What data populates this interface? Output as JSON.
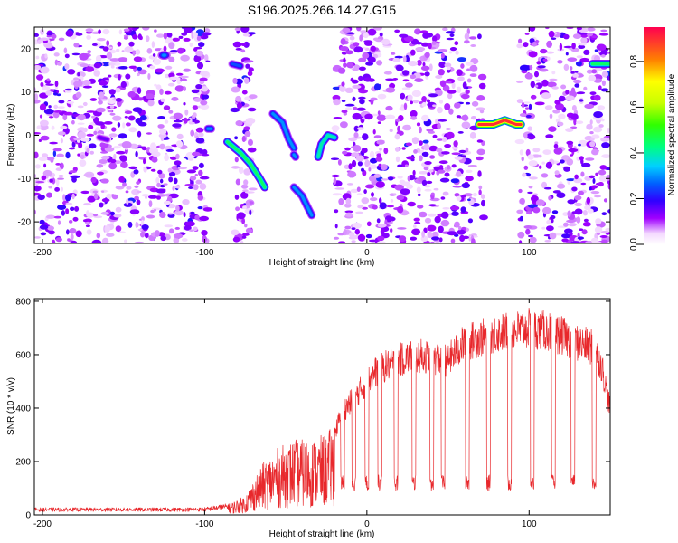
{
  "figure": {
    "title": "S196.2025.266.14.27.G15"
  },
  "chart_data": [
    {
      "type": "heatmap",
      "title": "S196.2025.266.14.27.G15",
      "xlabel": "Height of straight line (km)",
      "ylabel": "Frequency (Hz)",
      "xlim": [
        -205,
        150
      ],
      "ylim": [
        -25,
        25
      ],
      "xticks": [
        -200,
        -100,
        0,
        100
      ],
      "yticks": [
        -20,
        -10,
        0,
        10,
        20
      ],
      "colorbar": {
        "label": "Normalized spectral amplitude",
        "range": [
          0,
          0.95
        ],
        "ticks": [
          0.0,
          0.2,
          0.4,
          0.6,
          0.8
        ]
      },
      "gaps_km": [
        [
          -98,
          -82
        ],
        [
          -70,
          -20
        ],
        [
          -18,
          -17
        ],
        [
          67,
          69
        ],
        [
          72,
          94
        ]
      ],
      "tracks": [
        {
          "points": [
            [
              -125,
              18.5
            ]
          ],
          "amp": 0.3
        },
        {
          "points": [
            [
              -83,
              16.5
            ],
            [
              -78,
              16
            ]
          ],
          "amp": 0.25
        },
        {
          "points": [
            [
              -98,
              1.5
            ],
            [
              -96,
              1.5
            ]
          ],
          "amp": 0.3
        },
        {
          "points": [
            [
              -86,
              -1.5
            ],
            [
              -78,
              -4
            ],
            [
              -72,
              -6.5
            ],
            [
              -66,
              -10
            ],
            [
              -63,
              -12
            ]
          ],
          "amp": 0.45
        },
        {
          "points": [
            [
              -58,
              5
            ],
            [
              -52,
              3
            ],
            [
              -48,
              -1
            ],
            [
              -45,
              -3
            ]
          ],
          "amp": 0.3
        },
        {
          "points": [
            [
              -45,
              -4.5
            ],
            [
              -44,
              -5
            ]
          ],
          "amp": 0.3
        },
        {
          "points": [
            [
              -45,
              -12
            ],
            [
              -40,
              -14
            ],
            [
              -36,
              -17
            ],
            [
              -34,
              -18.5
            ]
          ],
          "amp": 0.3
        },
        {
          "points": [
            [
              -30,
              -5
            ],
            [
              -28,
              -2
            ],
            [
              -24,
              0
            ],
            [
              -20,
              -0.5
            ]
          ],
          "amp": 0.4
        },
        {
          "points": [
            [
              -165,
              -0.5
            ],
            [
              -160,
              -1
            ]
          ],
          "amp": 0.15
        },
        {
          "points": [
            [
              69,
              2.5
            ],
            [
              78,
              2.5
            ],
            [
              85,
              3.5
            ],
            [
              92,
              2.5
            ],
            [
              95,
              2.5
            ]
          ],
          "amp": 0.9
        },
        {
          "points": [
            [
              139,
              16.5
            ],
            [
              150,
              16.5
            ]
          ],
          "amp": 0.45
        }
      ]
    },
    {
      "type": "line",
      "xlabel": "Height of straight line (km)",
      "ylabel": "SNR (10 * v/v)",
      "xlim": [
        -205,
        150
      ],
      "ylim": [
        0,
        810
      ],
      "xticks": [
        -200,
        -100,
        0,
        100
      ],
      "yticks": [
        0,
        200,
        400,
        600,
        800
      ],
      "color": "#e8282c",
      "envelope": [
        [
          -205,
          25
        ],
        [
          -120,
          25
        ],
        [
          -100,
          26
        ],
        [
          -85,
          40
        ],
        [
          -75,
          70
        ],
        [
          -65,
          180
        ],
        [
          -55,
          240
        ],
        [
          -45,
          270
        ],
        [
          -35,
          270
        ],
        [
          -25,
          290
        ],
        [
          -20,
          330
        ],
        [
          -15,
          420
        ],
        [
          -10,
          460
        ],
        [
          -5,
          500
        ],
        [
          0,
          540
        ],
        [
          5,
          580
        ],
        [
          10,
          600
        ],
        [
          20,
          630
        ],
        [
          30,
          650
        ],
        [
          40,
          640
        ],
        [
          50,
          630
        ],
        [
          60,
          700
        ],
        [
          70,
          720
        ],
        [
          80,
          740
        ],
        [
          90,
          750
        ],
        [
          100,
          760
        ],
        [
          110,
          750
        ],
        [
          120,
          730
        ],
        [
          130,
          700
        ],
        [
          140,
          680
        ],
        [
          145,
          600
        ],
        [
          150,
          430
        ]
      ],
      "dropouts_km": [
        -15,
        -8,
        0,
        8,
        18,
        29,
        40,
        47,
        62,
        75,
        88,
        102,
        115,
        127,
        140
      ]
    }
  ]
}
